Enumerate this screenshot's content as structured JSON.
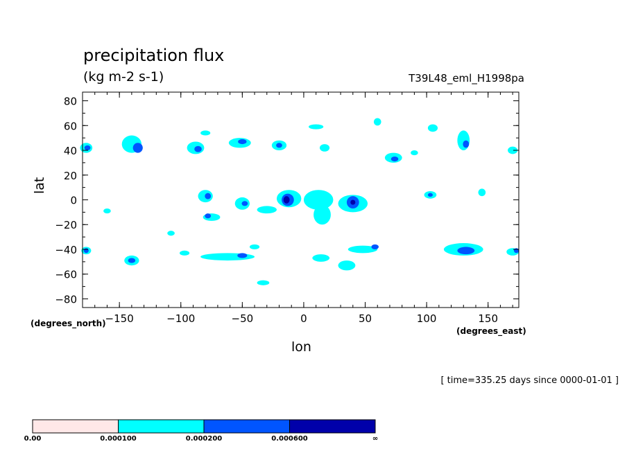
{
  "chart_data": {
    "type": "contour-map",
    "title": "precipitation flux",
    "units": "(kg m-2 s-1)",
    "run_id": "T39L48_eml_H1998pa",
    "xlabel": "lon",
    "ylabel": "lat",
    "x_units": "(degrees_east)",
    "y_units": "(degrees_north)",
    "xlim": [
      -180,
      175
    ],
    "ylim": [
      -87,
      87
    ],
    "x_ticks": [
      -150,
      -100,
      -50,
      0,
      50,
      100,
      150
    ],
    "y_ticks": [
      80,
      60,
      40,
      20,
      0,
      -20,
      -40,
      -60,
      -80
    ],
    "x_tick_labels": [
      "−150",
      "−100",
      "−50",
      "0",
      "50",
      "100",
      "150"
    ],
    "y_tick_labels": [
      "80",
      "60",
      "40",
      "20",
      "0",
      "−20",
      "−40",
      "−60",
      "−80"
    ],
    "time_note": "[ time=335.25 days since 0000-01-01 ]",
    "colorbar": {
      "levels": [
        "0.00",
        "0.000100",
        "0.000200",
        "0.000600",
        "∞"
      ],
      "colors": [
        "#ffe8e8",
        "#00ffff",
        "#0055ff",
        "#0000aa"
      ]
    },
    "regions": [
      {
        "lon": -177,
        "lat": 42,
        "level": 1,
        "rx": 5,
        "ry": 4
      },
      {
        "lon": -176,
        "lat": 42,
        "level": 2,
        "rx": 2.5,
        "ry": 2
      },
      {
        "lon": -140,
        "lat": 45,
        "level": 1,
        "rx": 8,
        "ry": 7
      },
      {
        "lon": -135,
        "lat": 42,
        "level": 2,
        "rx": 4,
        "ry": 4
      },
      {
        "lon": -88,
        "lat": 42,
        "level": 1,
        "rx": 7,
        "ry": 5
      },
      {
        "lon": -86,
        "lat": 41,
        "level": 2,
        "rx": 3,
        "ry": 2.5
      },
      {
        "lon": -52,
        "lat": 46,
        "level": 1,
        "rx": 9,
        "ry": 4
      },
      {
        "lon": -50,
        "lat": 47,
        "level": 2,
        "rx": 3.5,
        "ry": 2
      },
      {
        "lon": -20,
        "lat": 44,
        "level": 1,
        "rx": 6,
        "ry": 4
      },
      {
        "lon": -20,
        "lat": 44,
        "level": 2,
        "rx": 2.5,
        "ry": 2
      },
      {
        "lon": 17,
        "lat": 42,
        "level": 1,
        "rx": 4,
        "ry": 3
      },
      {
        "lon": 73,
        "lat": 34,
        "level": 1,
        "rx": 7,
        "ry": 4
      },
      {
        "lon": 74,
        "lat": 33,
        "level": 2,
        "rx": 3,
        "ry": 2
      },
      {
        "lon": 130,
        "lat": 48,
        "level": 1,
        "rx": 5,
        "ry": 8
      },
      {
        "lon": 132,
        "lat": 45,
        "level": 2,
        "rx": 2.5,
        "ry": 3
      },
      {
        "lon": 105,
        "lat": 58,
        "level": 1,
        "rx": 4,
        "ry": 3
      },
      {
        "lon": 10,
        "lat": 59,
        "level": 1,
        "rx": 6,
        "ry": 2
      },
      {
        "lon": 170,
        "lat": 40,
        "level": 1,
        "rx": 4,
        "ry": 3
      },
      {
        "lon": -80,
        "lat": 54,
        "level": 1,
        "rx": 4,
        "ry": 2
      },
      {
        "lon": 90,
        "lat": 38,
        "level": 1,
        "rx": 3,
        "ry": 2
      },
      {
        "lon": 60,
        "lat": 63,
        "level": 1,
        "rx": 3,
        "ry": 3
      },
      {
        "lon": -80,
        "lat": 3,
        "level": 1,
        "rx": 6,
        "ry": 5
      },
      {
        "lon": -78,
        "lat": 3,
        "level": 2,
        "rx": 2.5,
        "ry": 2.5
      },
      {
        "lon": -50,
        "lat": -3,
        "level": 1,
        "rx": 6,
        "ry": 5
      },
      {
        "lon": -48,
        "lat": -3,
        "level": 2,
        "rx": 2.5,
        "ry": 2
      },
      {
        "lon": -75,
        "lat": -14,
        "level": 1,
        "rx": 7,
        "ry": 3
      },
      {
        "lon": -78,
        "lat": -13,
        "level": 2,
        "rx": 2.5,
        "ry": 2
      },
      {
        "lon": -30,
        "lat": -8,
        "level": 1,
        "rx": 8,
        "ry": 3
      },
      {
        "lon": -12,
        "lat": 1,
        "level": 1,
        "rx": 10,
        "ry": 7
      },
      {
        "lon": -13,
        "lat": 0,
        "level": 2,
        "rx": 5,
        "ry": 5
      },
      {
        "lon": -14,
        "lat": 0,
        "level": 3,
        "rx": 2.5,
        "ry": 3
      },
      {
        "lon": 12,
        "lat": 0,
        "level": 1,
        "rx": 12,
        "ry": 8
      },
      {
        "lon": 15,
        "lat": -12,
        "level": 1,
        "rx": 7,
        "ry": 8
      },
      {
        "lon": 40,
        "lat": -3,
        "level": 1,
        "rx": 12,
        "ry": 7
      },
      {
        "lon": 40,
        "lat": -2,
        "level": 2,
        "rx": 5,
        "ry": 5
      },
      {
        "lon": 40,
        "lat": -2,
        "level": 3,
        "rx": 2,
        "ry": 2
      },
      {
        "lon": 103,
        "lat": 4,
        "level": 1,
        "rx": 5,
        "ry": 3
      },
      {
        "lon": 103,
        "lat": 4,
        "level": 2,
        "rx": 2,
        "ry": 1.5
      },
      {
        "lon": 145,
        "lat": 6,
        "level": 1,
        "rx": 3,
        "ry": 3
      },
      {
        "lon": -160,
        "lat": -9,
        "level": 1,
        "rx": 3,
        "ry": 2
      },
      {
        "lon": -177,
        "lat": -41,
        "level": 1,
        "rx": 4,
        "ry": 3
      },
      {
        "lon": -177,
        "lat": -41,
        "level": 2,
        "rx": 2,
        "ry": 2
      },
      {
        "lon": -140,
        "lat": -49,
        "level": 1,
        "rx": 6,
        "ry": 4
      },
      {
        "lon": -140,
        "lat": -49,
        "level": 2,
        "rx": 3,
        "ry": 2
      },
      {
        "lon": -97,
        "lat": -43,
        "level": 1,
        "rx": 4,
        "ry": 2
      },
      {
        "lon": -62,
        "lat": -46,
        "level": 1,
        "rx": 22,
        "ry": 3
      },
      {
        "lon": -50,
        "lat": -45,
        "level": 2,
        "rx": 4,
        "ry": 2
      },
      {
        "lon": -40,
        "lat": -38,
        "level": 1,
        "rx": 4,
        "ry": 2
      },
      {
        "lon": 14,
        "lat": -47,
        "level": 1,
        "rx": 7,
        "ry": 3
      },
      {
        "lon": 35,
        "lat": -53,
        "level": 1,
        "rx": 7,
        "ry": 4
      },
      {
        "lon": 48,
        "lat": -40,
        "level": 1,
        "rx": 12,
        "ry": 3
      },
      {
        "lon": 58,
        "lat": -38,
        "level": 2,
        "rx": 3,
        "ry": 2
      },
      {
        "lon": 130,
        "lat": -40,
        "level": 1,
        "rx": 16,
        "ry": 5
      },
      {
        "lon": 132,
        "lat": -41,
        "level": 2,
        "rx": 7,
        "ry": 3
      },
      {
        "lon": 170,
        "lat": -42,
        "level": 1,
        "rx": 5,
        "ry": 3
      },
      {
        "lon": 173,
        "lat": -41,
        "level": 2,
        "rx": 2,
        "ry": 2
      },
      {
        "lon": -108,
        "lat": -27,
        "level": 1,
        "rx": 3,
        "ry": 2
      },
      {
        "lon": -33,
        "lat": -67,
        "level": 1,
        "rx": 5,
        "ry": 2
      }
    ]
  }
}
